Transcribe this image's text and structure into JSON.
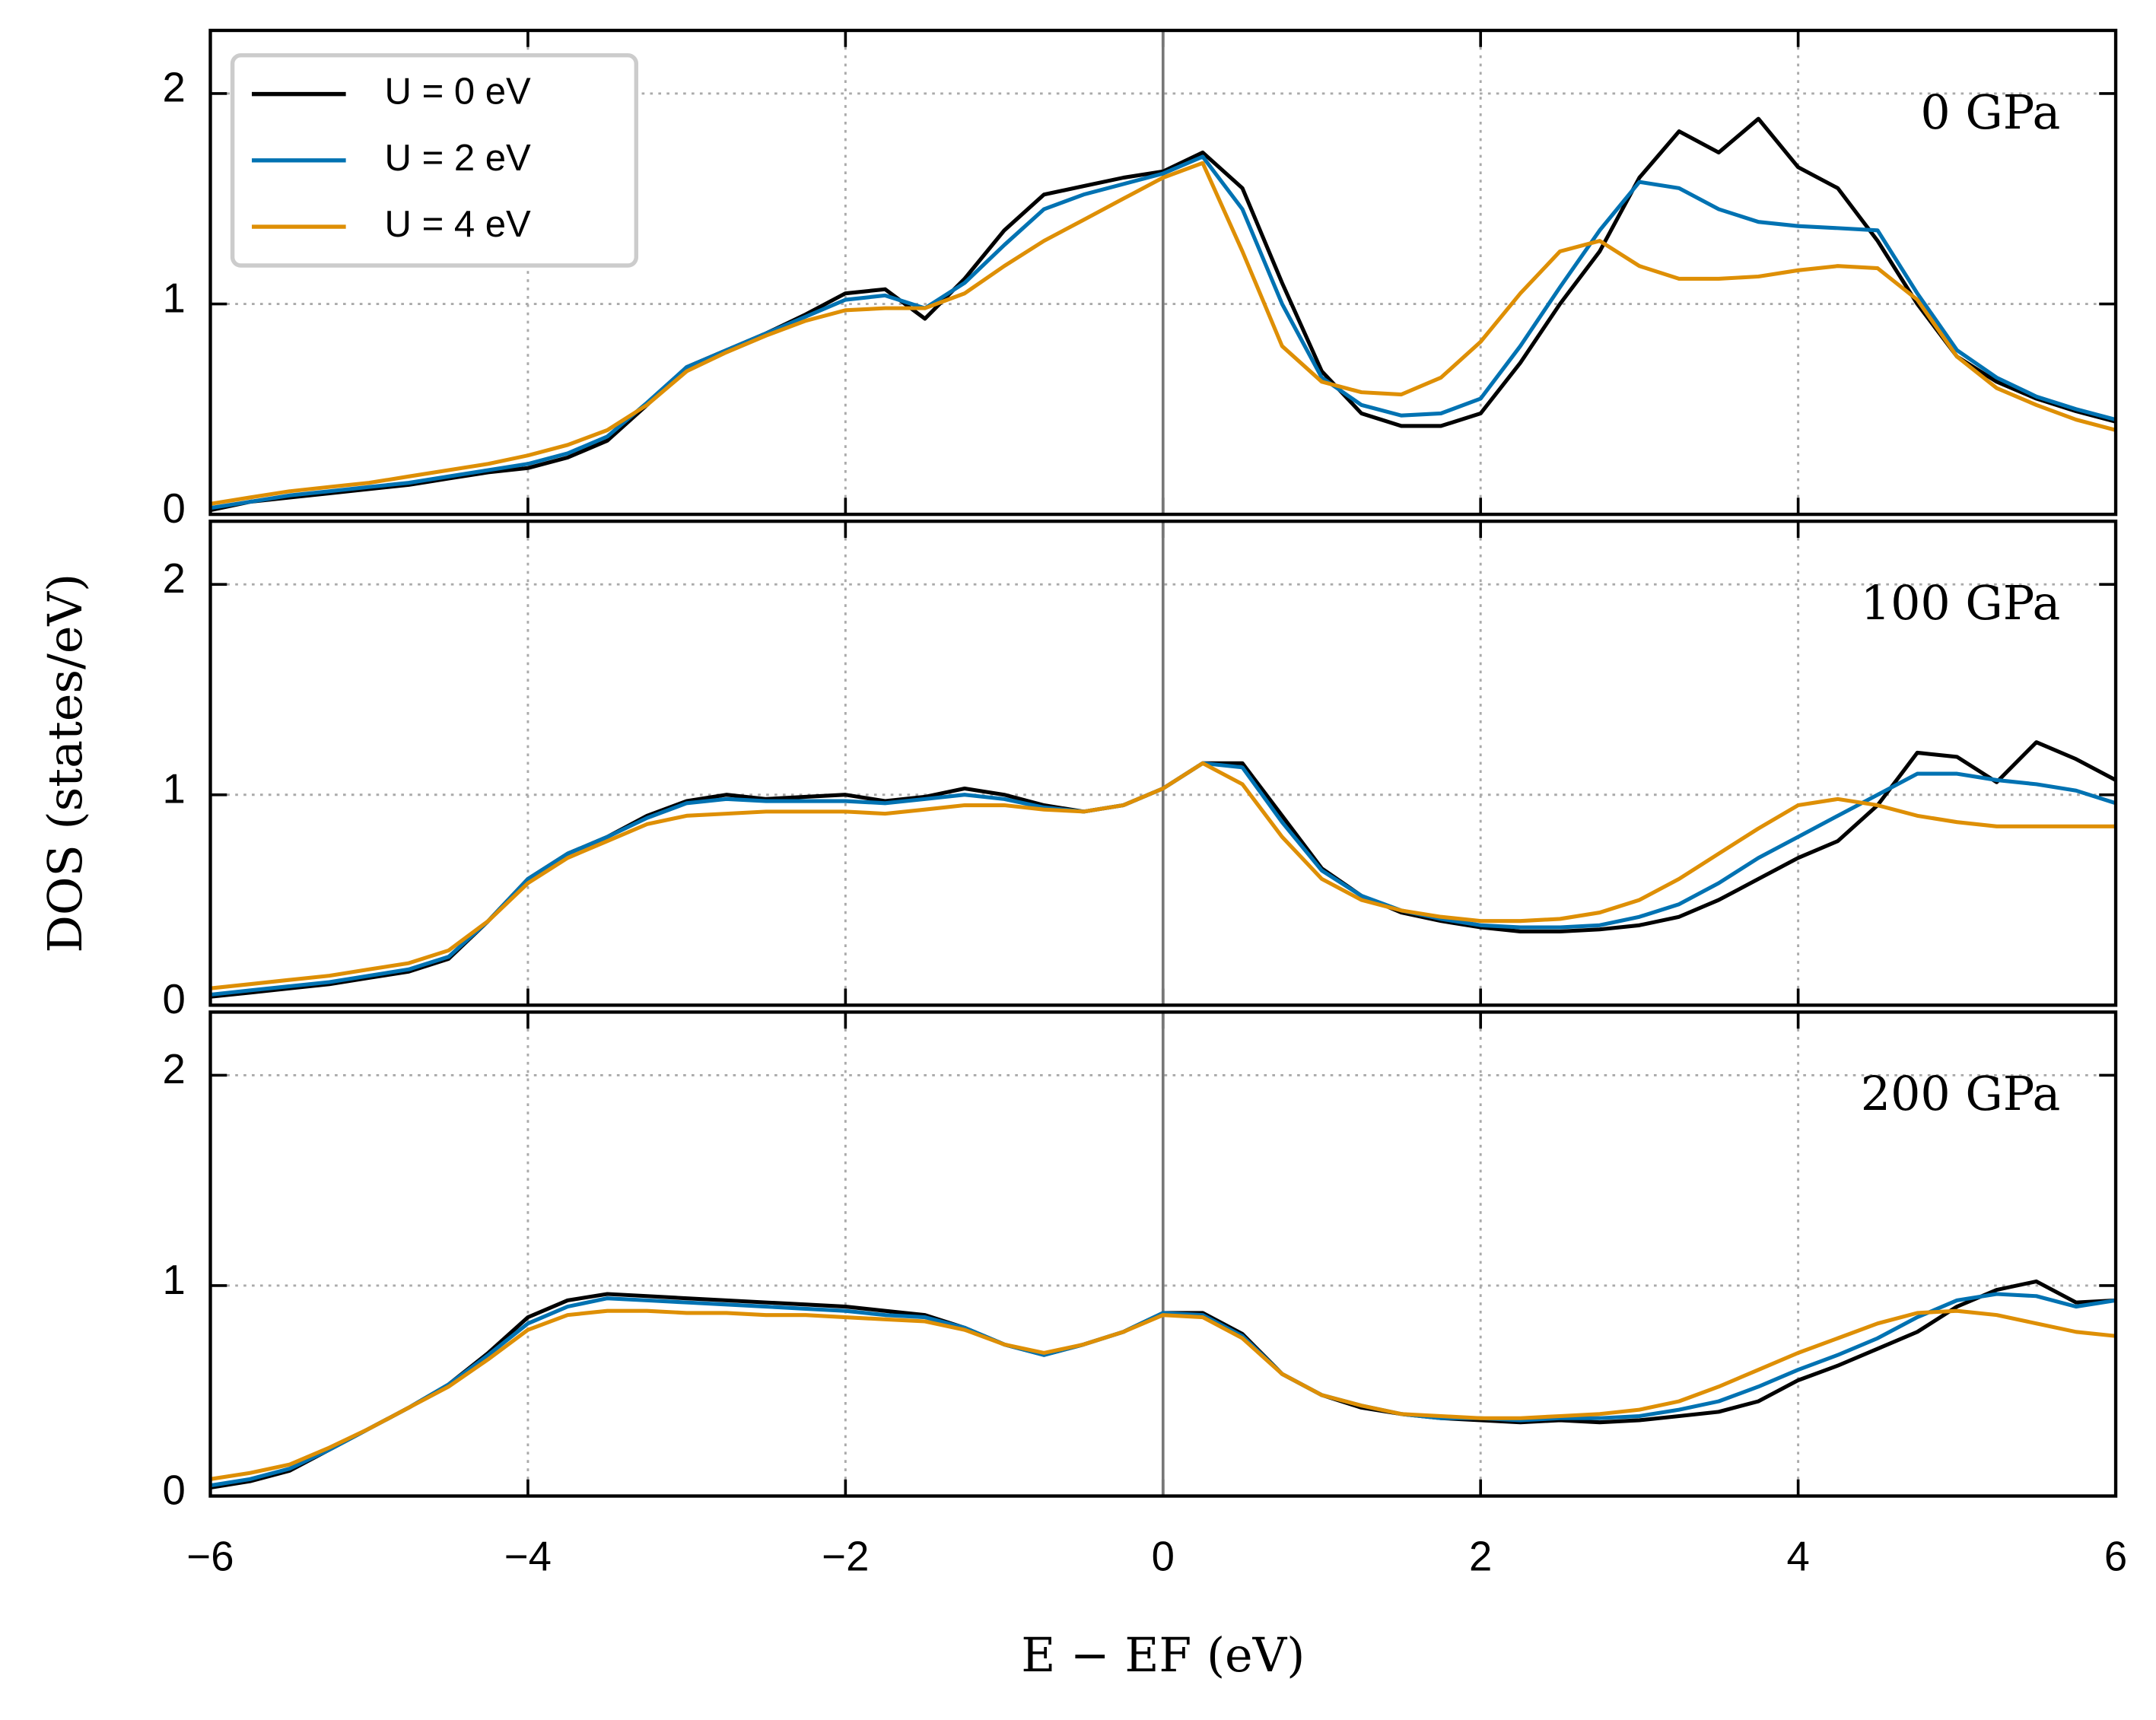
{
  "chart_data": [
    {
      "type": "line",
      "annotation": "0 GPa",
      "legend": "upper left",
      "grid": true,
      "vline": 0,
      "xlim": [
        -6,
        6
      ],
      "xticks": [
        -6,
        -4,
        -2,
        0,
        2,
        4,
        6
      ],
      "ylim": [
        0,
        2.3
      ],
      "yticks": [
        0,
        1,
        2
      ],
      "x": [
        -6,
        -5.75,
        -5.5,
        -5.25,
        -5,
        -4.75,
        -4.5,
        -4.25,
        -4,
        -3.75,
        -3.5,
        -3.25,
        -3,
        -2.75,
        -2.5,
        -2.25,
        -2,
        -1.75,
        -1.5,
        -1.25,
        -1,
        -0.75,
        -0.5,
        -0.25,
        0,
        0.25,
        0.5,
        0.75,
        1,
        1.25,
        1.5,
        1.75,
        2,
        2.25,
        2.5,
        2.75,
        3,
        3.25,
        3.5,
        3.75,
        4,
        4.25,
        4.5,
        4.75,
        5,
        5.25,
        5.5,
        5.75,
        6
      ],
      "series": [
        {
          "name": "U = 0 eV",
          "color": "#000000",
          "values": [
            0.02,
            0.06,
            0.08,
            0.1,
            0.12,
            0.14,
            0.17,
            0.2,
            0.22,
            0.27,
            0.35,
            0.52,
            0.7,
            0.78,
            0.86,
            0.95,
            1.05,
            1.07,
            0.93,
            1.12,
            1.35,
            1.52,
            1.56,
            1.6,
            1.63,
            1.72,
            1.55,
            1.1,
            0.68,
            0.48,
            0.42,
            0.42,
            0.48,
            0.72,
            1.0,
            1.25,
            1.6,
            1.82,
            1.72,
            1.88,
            1.65,
            1.55,
            1.3,
            1.0,
            0.75,
            0.63,
            0.55,
            0.49,
            0.44
          ]
        },
        {
          "name": "U = 2 eV",
          "color": "#0072b2",
          "values": [
            0.03,
            0.06,
            0.09,
            0.11,
            0.13,
            0.15,
            0.18,
            0.21,
            0.24,
            0.29,
            0.37,
            0.53,
            0.7,
            0.78,
            0.86,
            0.94,
            1.02,
            1.04,
            0.98,
            1.1,
            1.28,
            1.45,
            1.52,
            1.57,
            1.62,
            1.7,
            1.45,
            1.0,
            0.65,
            0.52,
            0.47,
            0.48,
            0.55,
            0.8,
            1.08,
            1.35,
            1.58,
            1.55,
            1.45,
            1.39,
            1.37,
            1.36,
            1.35,
            1.05,
            0.78,
            0.65,
            0.56,
            0.5,
            0.45
          ]
        },
        {
          "name": "U = 4 eV",
          "color": "#de8f05",
          "values": [
            0.05,
            0.08,
            0.11,
            0.13,
            0.15,
            0.18,
            0.21,
            0.24,
            0.28,
            0.33,
            0.4,
            0.52,
            0.68,
            0.77,
            0.85,
            0.92,
            0.97,
            0.98,
            0.98,
            1.05,
            1.18,
            1.3,
            1.4,
            1.5,
            1.6,
            1.67,
            1.25,
            0.8,
            0.63,
            0.58,
            0.57,
            0.65,
            0.82,
            1.05,
            1.25,
            1.3,
            1.18,
            1.12,
            1.12,
            1.13,
            1.16,
            1.18,
            1.17,
            1.02,
            0.75,
            0.6,
            0.52,
            0.45,
            0.4
          ]
        }
      ]
    },
    {
      "type": "line",
      "annotation": "100 GPa",
      "ylabel": "DOS (states/eV)",
      "grid": true,
      "vline": 0,
      "xlim": [
        -6,
        6
      ],
      "xticks": [
        -6,
        -4,
        -2,
        0,
        2,
        4,
        6
      ],
      "ylim": [
        0,
        2.3
      ],
      "yticks": [
        0,
        1,
        2
      ],
      "x": [
        -6,
        -5.75,
        -5.5,
        -5.25,
        -5,
        -4.75,
        -4.5,
        -4.25,
        -4,
        -3.75,
        -3.5,
        -3.25,
        -3,
        -2.75,
        -2.5,
        -2.25,
        -2,
        -1.75,
        -1.5,
        -1.25,
        -1,
        -0.75,
        -0.5,
        -0.25,
        0,
        0.25,
        0.5,
        0.75,
        1,
        1.25,
        1.5,
        1.75,
        2,
        2.25,
        2.5,
        2.75,
        3,
        3.25,
        3.5,
        3.75,
        4,
        4.25,
        4.5,
        4.75,
        5,
        5.25,
        5.5,
        5.75,
        6
      ],
      "series": [
        {
          "name": "U = 0 eV",
          "color": "#000000",
          "values": [
            0.04,
            0.06,
            0.08,
            0.1,
            0.13,
            0.16,
            0.22,
            0.4,
            0.6,
            0.72,
            0.8,
            0.9,
            0.97,
            1.0,
            0.98,
            0.99,
            1.0,
            0.97,
            0.99,
            1.03,
            1.0,
            0.95,
            0.92,
            0.95,
            1.03,
            1.15,
            1.15,
            0.9,
            0.65,
            0.52,
            0.44,
            0.4,
            0.37,
            0.35,
            0.35,
            0.36,
            0.38,
            0.42,
            0.5,
            0.6,
            0.7,
            0.78,
            0.95,
            1.2,
            1.18,
            1.06,
            1.25,
            1.17,
            1.07
          ]
        },
        {
          "name": "U = 2 eV",
          "color": "#0072b2",
          "values": [
            0.05,
            0.07,
            0.09,
            0.11,
            0.14,
            0.17,
            0.23,
            0.4,
            0.6,
            0.72,
            0.8,
            0.89,
            0.96,
            0.98,
            0.97,
            0.97,
            0.97,
            0.96,
            0.98,
            1.0,
            0.98,
            0.94,
            0.92,
            0.95,
            1.03,
            1.15,
            1.13,
            0.87,
            0.64,
            0.52,
            0.45,
            0.41,
            0.38,
            0.37,
            0.37,
            0.38,
            0.42,
            0.48,
            0.58,
            0.7,
            0.8,
            0.9,
            1.0,
            1.1,
            1.1,
            1.07,
            1.05,
            1.02,
            0.96
          ]
        },
        {
          "name": "U = 4 eV",
          "color": "#de8f05",
          "values": [
            0.08,
            0.1,
            0.12,
            0.14,
            0.17,
            0.2,
            0.26,
            0.4,
            0.58,
            0.7,
            0.78,
            0.86,
            0.9,
            0.91,
            0.92,
            0.92,
            0.92,
            0.91,
            0.93,
            0.95,
            0.95,
            0.93,
            0.92,
            0.95,
            1.03,
            1.15,
            1.05,
            0.8,
            0.6,
            0.5,
            0.45,
            0.42,
            0.4,
            0.4,
            0.41,
            0.44,
            0.5,
            0.6,
            0.72,
            0.84,
            0.95,
            0.98,
            0.95,
            0.9,
            0.87,
            0.85,
            0.85,
            0.85,
            0.85
          ]
        }
      ]
    },
    {
      "type": "line",
      "annotation": "200 GPa",
      "xlabel": "E − EF (eV)",
      "grid": true,
      "vline": 0,
      "xlim": [
        -6,
        6
      ],
      "xticks": [
        {
          "value": -6,
          "label": "−6"
        },
        {
          "value": -4,
          "label": "−4"
        },
        {
          "value": -2,
          "label": "−2"
        },
        0,
        2,
        4,
        6
      ],
      "ylim": [
        0,
        2.3
      ],
      "yticks": [
        0,
        1,
        2
      ],
      "x": [
        -6,
        -5.75,
        -5.5,
        -5.25,
        -5,
        -4.75,
        -4.5,
        -4.25,
        -4,
        -3.75,
        -3.5,
        -3.25,
        -3,
        -2.75,
        -2.5,
        -2.25,
        -2,
        -1.75,
        -1.5,
        -1.25,
        -1,
        -0.75,
        -0.5,
        -0.25,
        0,
        0.25,
        0.5,
        0.75,
        1,
        1.25,
        1.5,
        1.75,
        2,
        2.25,
        2.5,
        2.75,
        3,
        3.25,
        3.5,
        3.75,
        4,
        4.25,
        4.5,
        4.75,
        5,
        5.25,
        5.5,
        5.75,
        6
      ],
      "series": [
        {
          "name": "U = 0 eV",
          "color": "#000000",
          "values": [
            0.04,
            0.07,
            0.12,
            0.22,
            0.32,
            0.42,
            0.53,
            0.68,
            0.85,
            0.93,
            0.96,
            0.95,
            0.94,
            0.93,
            0.92,
            0.91,
            0.9,
            0.88,
            0.86,
            0.8,
            0.72,
            0.67,
            0.72,
            0.78,
            0.87,
            0.87,
            0.77,
            0.58,
            0.48,
            0.42,
            0.39,
            0.37,
            0.36,
            0.35,
            0.36,
            0.35,
            0.36,
            0.38,
            0.4,
            0.45,
            0.55,
            0.62,
            0.7,
            0.78,
            0.9,
            0.98,
            1.02,
            0.92,
            0.93
          ]
        },
        {
          "name": "U = 2 eV",
          "color": "#0072b2",
          "values": [
            0.05,
            0.08,
            0.13,
            0.22,
            0.32,
            0.42,
            0.53,
            0.67,
            0.82,
            0.9,
            0.94,
            0.93,
            0.92,
            0.91,
            0.9,
            0.89,
            0.88,
            0.86,
            0.85,
            0.8,
            0.72,
            0.67,
            0.72,
            0.78,
            0.87,
            0.86,
            0.76,
            0.58,
            0.48,
            0.43,
            0.39,
            0.37,
            0.37,
            0.36,
            0.37,
            0.37,
            0.38,
            0.41,
            0.45,
            0.52,
            0.6,
            0.67,
            0.75,
            0.85,
            0.93,
            0.96,
            0.95,
            0.9,
            0.93
          ]
        },
        {
          "name": "U = 4 eV",
          "color": "#de8f05",
          "values": [
            0.08,
            0.11,
            0.15,
            0.23,
            0.32,
            0.42,
            0.52,
            0.65,
            0.79,
            0.86,
            0.88,
            0.88,
            0.87,
            0.87,
            0.86,
            0.86,
            0.85,
            0.84,
            0.83,
            0.79,
            0.72,
            0.68,
            0.72,
            0.78,
            0.86,
            0.85,
            0.75,
            0.58,
            0.48,
            0.43,
            0.39,
            0.38,
            0.37,
            0.37,
            0.38,
            0.39,
            0.41,
            0.45,
            0.52,
            0.6,
            0.68,
            0.75,
            0.82,
            0.87,
            0.88,
            0.86,
            0.82,
            0.78,
            0.76
          ]
        }
      ]
    }
  ]
}
